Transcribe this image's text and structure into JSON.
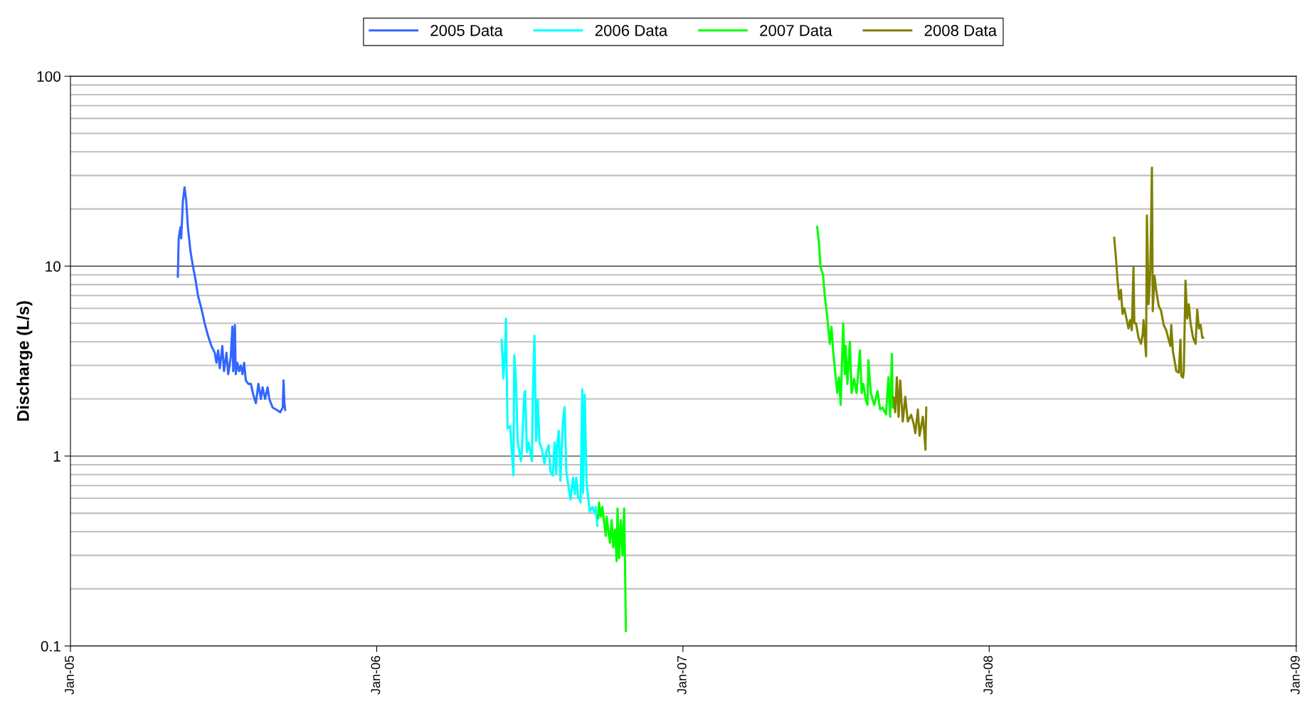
{
  "chart_data": {
    "type": "line",
    "ylabel": "Discharge (L/s)",
    "log": "y",
    "grid": "y",
    "legend": "top",
    "line_style": "solid",
    "marker": "none",
    "xlim": [
      "2005-01-01",
      "2009-01-01"
    ],
    "xticks": [
      {
        "value": "2005-01-01",
        "label": "Jan-05"
      },
      {
        "value": "2006-01-01",
        "label": "Jan-06"
      },
      {
        "value": "2007-01-01",
        "label": "Jan-07"
      },
      {
        "value": "2008-01-01",
        "label": "Jan-08"
      },
      {
        "value": "2009-01-01",
        "label": "Jan-09"
      }
    ],
    "ylim": [
      0.1,
      100
    ],
    "yticks": [
      0.1,
      1,
      10,
      100
    ],
    "series": [
      {
        "name": "2005 Data",
        "color": "#3366ff",
        "x": [
          "2005-05-09",
          "2005-05-10",
          "2005-05-12",
          "2005-05-13",
          "2005-05-15",
          "2005-05-17",
          "2005-05-19",
          "2005-05-21",
          "2005-05-24",
          "2005-05-27",
          "2005-05-30",
          "2005-06-02",
          "2005-06-06",
          "2005-06-10",
          "2005-06-14",
          "2005-06-18",
          "2005-06-22",
          "2005-06-24",
          "2005-06-26",
          "2005-06-28",
          "2005-07-01",
          "2005-07-03",
          "2005-07-06",
          "2005-07-08",
          "2005-07-11",
          "2005-07-13",
          "2005-07-14",
          "2005-07-16",
          "2005-07-17",
          "2005-07-19",
          "2005-07-21",
          "2005-07-23",
          "2005-07-25",
          "2005-07-27",
          "2005-07-29",
          "2005-08-01",
          "2005-08-04",
          "2005-08-07",
          "2005-08-10",
          "2005-08-13",
          "2005-08-16",
          "2005-08-18",
          "2005-08-21",
          "2005-08-24",
          "2005-08-26",
          "2005-08-30",
          "2005-09-04",
          "2005-09-08",
          "2005-09-11",
          "2005-09-12",
          "2005-09-13",
          "2005-09-14"
        ],
        "values": [
          8.8,
          14,
          16,
          14,
          22,
          26,
          22,
          16,
          12,
          10,
          8.5,
          7,
          6,
          5,
          4.3,
          3.8,
          3.5,
          3.1,
          3.6,
          2.9,
          3.8,
          2.8,
          3.5,
          2.7,
          3.3,
          4.8,
          2.8,
          4.9,
          2.7,
          3.1,
          2.8,
          3.0,
          2.7,
          3.1,
          2.5,
          2.4,
          2.4,
          2.1,
          1.9,
          2.4,
          2.0,
          2.3,
          2.0,
          2.3,
          2.0,
          1.8,
          1.75,
          1.7,
          1.8,
          2.5,
          1.9,
          1.75
        ]
      },
      {
        "name": "2006 Data",
        "color": "#00ffff",
        "x": [
          "2006-05-30",
          "2006-06-01",
          "2006-06-03",
          "2006-06-04",
          "2006-06-06",
          "2006-06-09",
          "2006-06-13",
          "2006-06-14",
          "2006-06-16",
          "2006-06-18",
          "2006-06-22",
          "2006-06-23",
          "2006-06-26",
          "2006-06-27",
          "2006-06-29",
          "2006-07-01",
          "2006-07-05",
          "2006-07-06",
          "2006-07-08",
          "2006-07-10",
          "2006-07-12",
          "2006-07-14",
          "2006-07-17",
          "2006-07-20",
          "2006-07-22",
          "2006-07-25",
          "2006-07-27",
          "2006-07-30",
          "2006-08-01",
          "2006-08-03",
          "2006-08-04",
          "2006-08-06",
          "2006-08-08",
          "2006-08-11",
          "2006-08-13",
          "2006-08-15",
          "2006-08-17",
          "2006-08-20",
          "2006-08-23",
          "2006-08-25",
          "2006-08-27",
          "2006-08-29",
          "2006-08-31",
          "2006-09-01",
          "2006-09-03",
          "2006-09-04",
          "2006-09-06",
          "2006-09-08",
          "2006-09-10",
          "2006-09-12",
          "2006-09-15",
          "2006-09-18",
          "2006-09-19",
          "2006-09-21"
        ],
        "values": [
          4.1,
          2.56,
          3.6,
          5.3,
          1.4,
          1.44,
          0.79,
          3.4,
          2.5,
          1.2,
          0.94,
          1.08,
          2.15,
          2.2,
          1.05,
          1.18,
          0.94,
          2.0,
          4.3,
          1.2,
          1.98,
          1.18,
          1.08,
          0.91,
          1.05,
          1.14,
          0.83,
          0.79,
          1.18,
          0.81,
          1.14,
          1.36,
          0.74,
          1.53,
          1.81,
          0.83,
          0.72,
          0.59,
          0.77,
          0.63,
          0.77,
          0.61,
          0.59,
          0.57,
          2.25,
          0.64,
          2.1,
          0.74,
          0.61,
          0.51,
          0.54,
          0.5,
          0.54,
          0.43
        ]
      },
      {
        "name": "2007 Data",
        "color": "#00ff00",
        "x": [
          "2006-09-22",
          "2006-09-23",
          "2006-09-25",
          "2006-09-27",
          "2006-10-01",
          "2006-10-02",
          "2006-10-06",
          "2006-10-08",
          "2006-10-10",
          "2006-10-12",
          "2006-10-14",
          "2006-10-15",
          "2006-10-17",
          "2006-10-19",
          "2006-10-21",
          "2006-10-23",
          "2006-10-24",
          "2006-10-25",
          null,
          "2007-06-10",
          "2007-06-12",
          "2007-06-14",
          "2007-06-17",
          "2007-06-19",
          "2007-06-22",
          "2007-06-25",
          "2007-06-27",
          "2007-06-29",
          "2007-07-01",
          "2007-07-04",
          "2007-07-06",
          "2007-07-08",
          "2007-07-11",
          "2007-07-13",
          "2007-07-14",
          "2007-07-16",
          "2007-07-19",
          "2007-07-21",
          "2007-07-24",
          "2007-07-27",
          "2007-07-29",
          "2007-07-31",
          "2007-08-02",
          "2007-08-04",
          "2007-08-07",
          "2007-08-09",
          "2007-08-10",
          "2007-08-13",
          "2007-08-17",
          "2007-08-21",
          "2007-08-24",
          "2007-08-27",
          "2007-08-31",
          "2007-09-03",
          "2007-09-05",
          "2007-09-07",
          "2007-09-08"
        ],
        "values": [
          0.47,
          0.57,
          0.48,
          0.54,
          0.38,
          0.48,
          0.35,
          0.46,
          0.33,
          0.41,
          0.28,
          0.53,
          0.29,
          0.46,
          0.3,
          0.53,
          0.26,
          0.12,
          null,
          16.1,
          13.5,
          9.9,
          9.0,
          7.0,
          5.4,
          3.9,
          4.8,
          3.6,
          2.9,
          2.15,
          2.6,
          1.86,
          5.0,
          2.7,
          3.8,
          2.4,
          4.0,
          2.15,
          2.55,
          2.15,
          2.8,
          3.6,
          2.15,
          2.4,
          1.97,
          1.86,
          3.2,
          2.15,
          1.86,
          2.2,
          1.76,
          1.8,
          1.66,
          2.6,
          1.61,
          3.45,
          1.8
        ]
      },
      {
        "name": "2008 Data",
        "color": "#808000",
        "x": [
          "2007-09-09",
          "2007-09-11",
          "2007-09-13",
          "2007-09-15",
          "2007-09-17",
          "2007-09-20",
          "2007-09-23",
          "2007-09-26",
          "2007-09-30",
          "2007-10-03",
          "2007-10-05",
          "2007-10-08",
          "2007-10-10",
          "2007-10-14",
          "2007-10-16",
          "2007-10-17",
          "2007-10-18",
          null,
          "2008-05-29",
          "2008-05-31",
          "2008-06-02",
          "2008-06-04",
          "2008-06-06",
          "2008-06-08",
          "2008-06-10",
          "2008-06-13",
          "2008-06-15",
          "2008-06-17",
          "2008-06-19",
          "2008-06-21",
          "2008-06-22",
          "2008-06-24",
          "2008-06-27",
          "2008-06-30",
          "2008-07-02",
          "2008-07-03",
          "2008-07-06",
          "2008-07-07",
          "2008-07-09",
          "2008-07-11",
          "2008-07-13",
          "2008-07-14",
          "2008-07-16",
          "2008-07-18",
          "2008-07-21",
          "2008-07-24",
          "2008-07-27",
          "2008-07-30",
          "2008-08-02",
          "2008-08-04",
          "2008-08-05",
          "2008-08-07",
          "2008-08-09",
          "2008-08-11",
          "2008-08-14",
          "2008-08-16",
          "2008-08-17",
          "2008-08-19",
          "2008-08-20",
          "2008-08-22",
          "2008-08-24",
          "2008-08-26",
          "2008-08-28",
          "2008-08-31",
          "2008-09-03",
          "2008-09-05",
          "2008-09-07",
          "2008-09-09",
          "2008-09-11",
          "2008-09-12"
        ],
        "values": [
          2.03,
          1.7,
          2.6,
          1.61,
          2.5,
          1.52,
          2.05,
          1.52,
          1.65,
          1.48,
          1.32,
          1.76,
          1.28,
          1.61,
          1.27,
          1.08,
          1.8,
          null,
          14.1,
          11.2,
          8.4,
          6.7,
          7.5,
          5.6,
          6.0,
          5.2,
          4.7,
          5.2,
          4.6,
          9.85,
          5.0,
          5.0,
          4.2,
          3.9,
          4.4,
          5.2,
          3.35,
          18.5,
          6.3,
          9.4,
          33,
          5.8,
          8.9,
          7.5,
          6.2,
          5.8,
          4.9,
          4.6,
          4.1,
          3.8,
          4.9,
          3.55,
          3.17,
          2.8,
          2.75,
          4.1,
          2.65,
          2.59,
          2.8,
          8.4,
          5.3,
          6.3,
          5.0,
          4.2,
          3.9,
          5.9,
          4.7,
          4.9,
          4.2,
          4.2
        ]
      }
    ]
  }
}
